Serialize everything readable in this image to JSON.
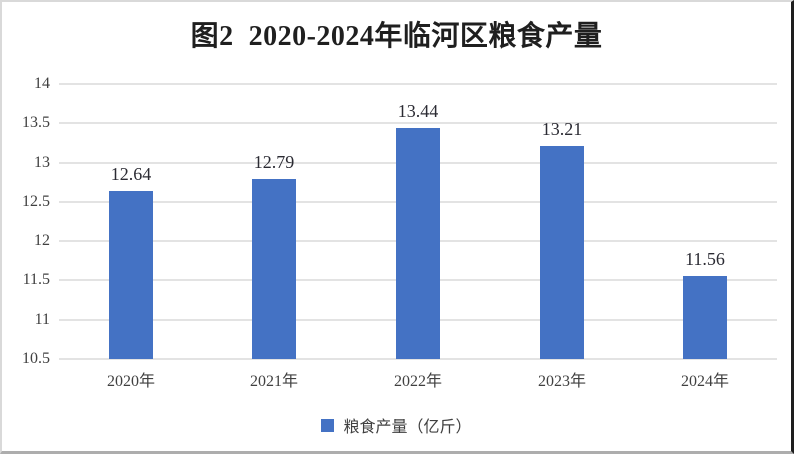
{
  "title": "图2  2020-2024年临河区粮食产量",
  "colors": {
    "bar": "#4472C4",
    "gridline": "#E3E3E3",
    "axis_text": "#404040",
    "title_text": "#1F1F1F",
    "value_label_text": "#2B2B33",
    "frame_border_light": "#D9D9D9",
    "frame_border_bottom": "#ADADAD",
    "frame_border_right": "#1E1E1E"
  },
  "legend": {
    "label": "粮食产量（亿斤）"
  },
  "chart_data": {
    "type": "bar",
    "title": "图2  2020-2024年临河区粮食产量",
    "categories": [
      "2020年",
      "2021年",
      "2022年",
      "2023年",
      "2024年"
    ],
    "values": [
      12.64,
      12.79,
      13.44,
      13.21,
      11.56
    ],
    "value_labels": [
      "12.64",
      "12.79",
      "13.44",
      "13.21",
      "11.56"
    ],
    "series_name": "粮食产量（亿斤）",
    "xlabel": "",
    "ylabel": "",
    "ylim": [
      10.5,
      14
    ],
    "ytick_step": 0.5,
    "yticks_top_to_bottom": [
      "14",
      "13.5",
      "13",
      "12.5",
      "12",
      "11.5",
      "11",
      "10.5"
    ],
    "grid": "horizontal",
    "legend_position": "bottom",
    "data_labels": "above-bars"
  }
}
